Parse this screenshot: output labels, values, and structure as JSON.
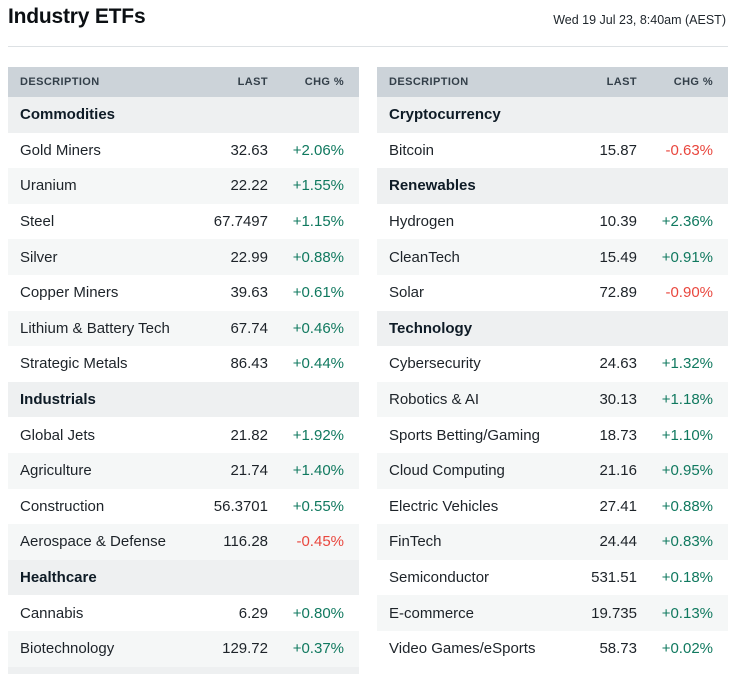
{
  "header": {
    "title": "Industry ETFs",
    "timestamp": "Wed 19 Jul 23, 8:40am (AEST)"
  },
  "columns": {
    "description": "DESCRIPTION",
    "last": "LAST",
    "chg": "CHG %"
  },
  "colors": {
    "positive": "#10795f",
    "negative": "#e9473e",
    "header_bg": "#ccd3d9",
    "section_bg": "#eef0f1",
    "stripe_bg": "#f5f7f7"
  },
  "tables": {
    "left": {
      "rows": [
        {
          "type": "section",
          "label": "Commodities"
        },
        {
          "type": "data",
          "description": "Gold Miners",
          "last": "32.63",
          "chg": "+2.06%"
        },
        {
          "type": "data",
          "description": "Uranium",
          "last": "22.22",
          "chg": "+1.55%"
        },
        {
          "type": "data",
          "description": "Steel",
          "last": "67.7497",
          "chg": "+1.15%"
        },
        {
          "type": "data",
          "description": "Silver",
          "last": "22.99",
          "chg": "+0.88%"
        },
        {
          "type": "data",
          "description": "Copper Miners",
          "last": "39.63",
          "chg": "+0.61%"
        },
        {
          "type": "data",
          "description": "Lithium & Battery Tech",
          "last": "67.74",
          "chg": "+0.46%"
        },
        {
          "type": "data",
          "description": "Strategic Metals",
          "last": "86.43",
          "chg": "+0.44%"
        },
        {
          "type": "section",
          "label": "Industrials"
        },
        {
          "type": "data",
          "description": "Global Jets",
          "last": "21.82",
          "chg": "+1.92%"
        },
        {
          "type": "data",
          "description": "Agriculture",
          "last": "21.74",
          "chg": "+1.40%"
        },
        {
          "type": "data",
          "description": "Construction",
          "last": "56.3701",
          "chg": "+0.55%"
        },
        {
          "type": "data",
          "description": "Aerospace & Defense",
          "last": "116.28",
          "chg": "-0.45%"
        },
        {
          "type": "section",
          "label": "Healthcare"
        },
        {
          "type": "data",
          "description": "Cannabis",
          "last": "6.29",
          "chg": "+0.80%"
        },
        {
          "type": "data",
          "description": "Biotechnology",
          "last": "129.72",
          "chg": "+0.37%"
        },
        {
          "type": "section",
          "label": ""
        }
      ]
    },
    "right": {
      "rows": [
        {
          "type": "section",
          "label": "Cryptocurrency"
        },
        {
          "type": "data",
          "description": "Bitcoin",
          "last": "15.87",
          "chg": "-0.63%"
        },
        {
          "type": "section",
          "label": "Renewables"
        },
        {
          "type": "data",
          "description": "Hydrogen",
          "last": "10.39",
          "chg": "+2.36%"
        },
        {
          "type": "data",
          "description": "CleanTech",
          "last": "15.49",
          "chg": "+0.91%"
        },
        {
          "type": "data",
          "description": "Solar",
          "last": "72.89",
          "chg": "-0.90%"
        },
        {
          "type": "section",
          "label": "Technology"
        },
        {
          "type": "data",
          "description": "Cybersecurity",
          "last": "24.63",
          "chg": "+1.32%"
        },
        {
          "type": "data",
          "description": "Robotics & AI",
          "last": "30.13",
          "chg": "+1.18%"
        },
        {
          "type": "data",
          "description": "Sports Betting/Gaming",
          "last": "18.73",
          "chg": "+1.10%"
        },
        {
          "type": "data",
          "description": "Cloud Computing",
          "last": "21.16",
          "chg": "+0.95%"
        },
        {
          "type": "data",
          "description": "Electric Vehicles",
          "last": "27.41",
          "chg": "+0.88%"
        },
        {
          "type": "data",
          "description": "FinTech",
          "last": "24.44",
          "chg": "+0.83%"
        },
        {
          "type": "data",
          "description": "Semiconductor",
          "last": "531.51",
          "chg": "+0.18%"
        },
        {
          "type": "data",
          "description": "E-commerce",
          "last": "19.735",
          "chg": "+0.13%"
        },
        {
          "type": "data",
          "description": "Video Games/eSports",
          "last": "58.73",
          "chg": "+0.02%"
        }
      ]
    }
  }
}
